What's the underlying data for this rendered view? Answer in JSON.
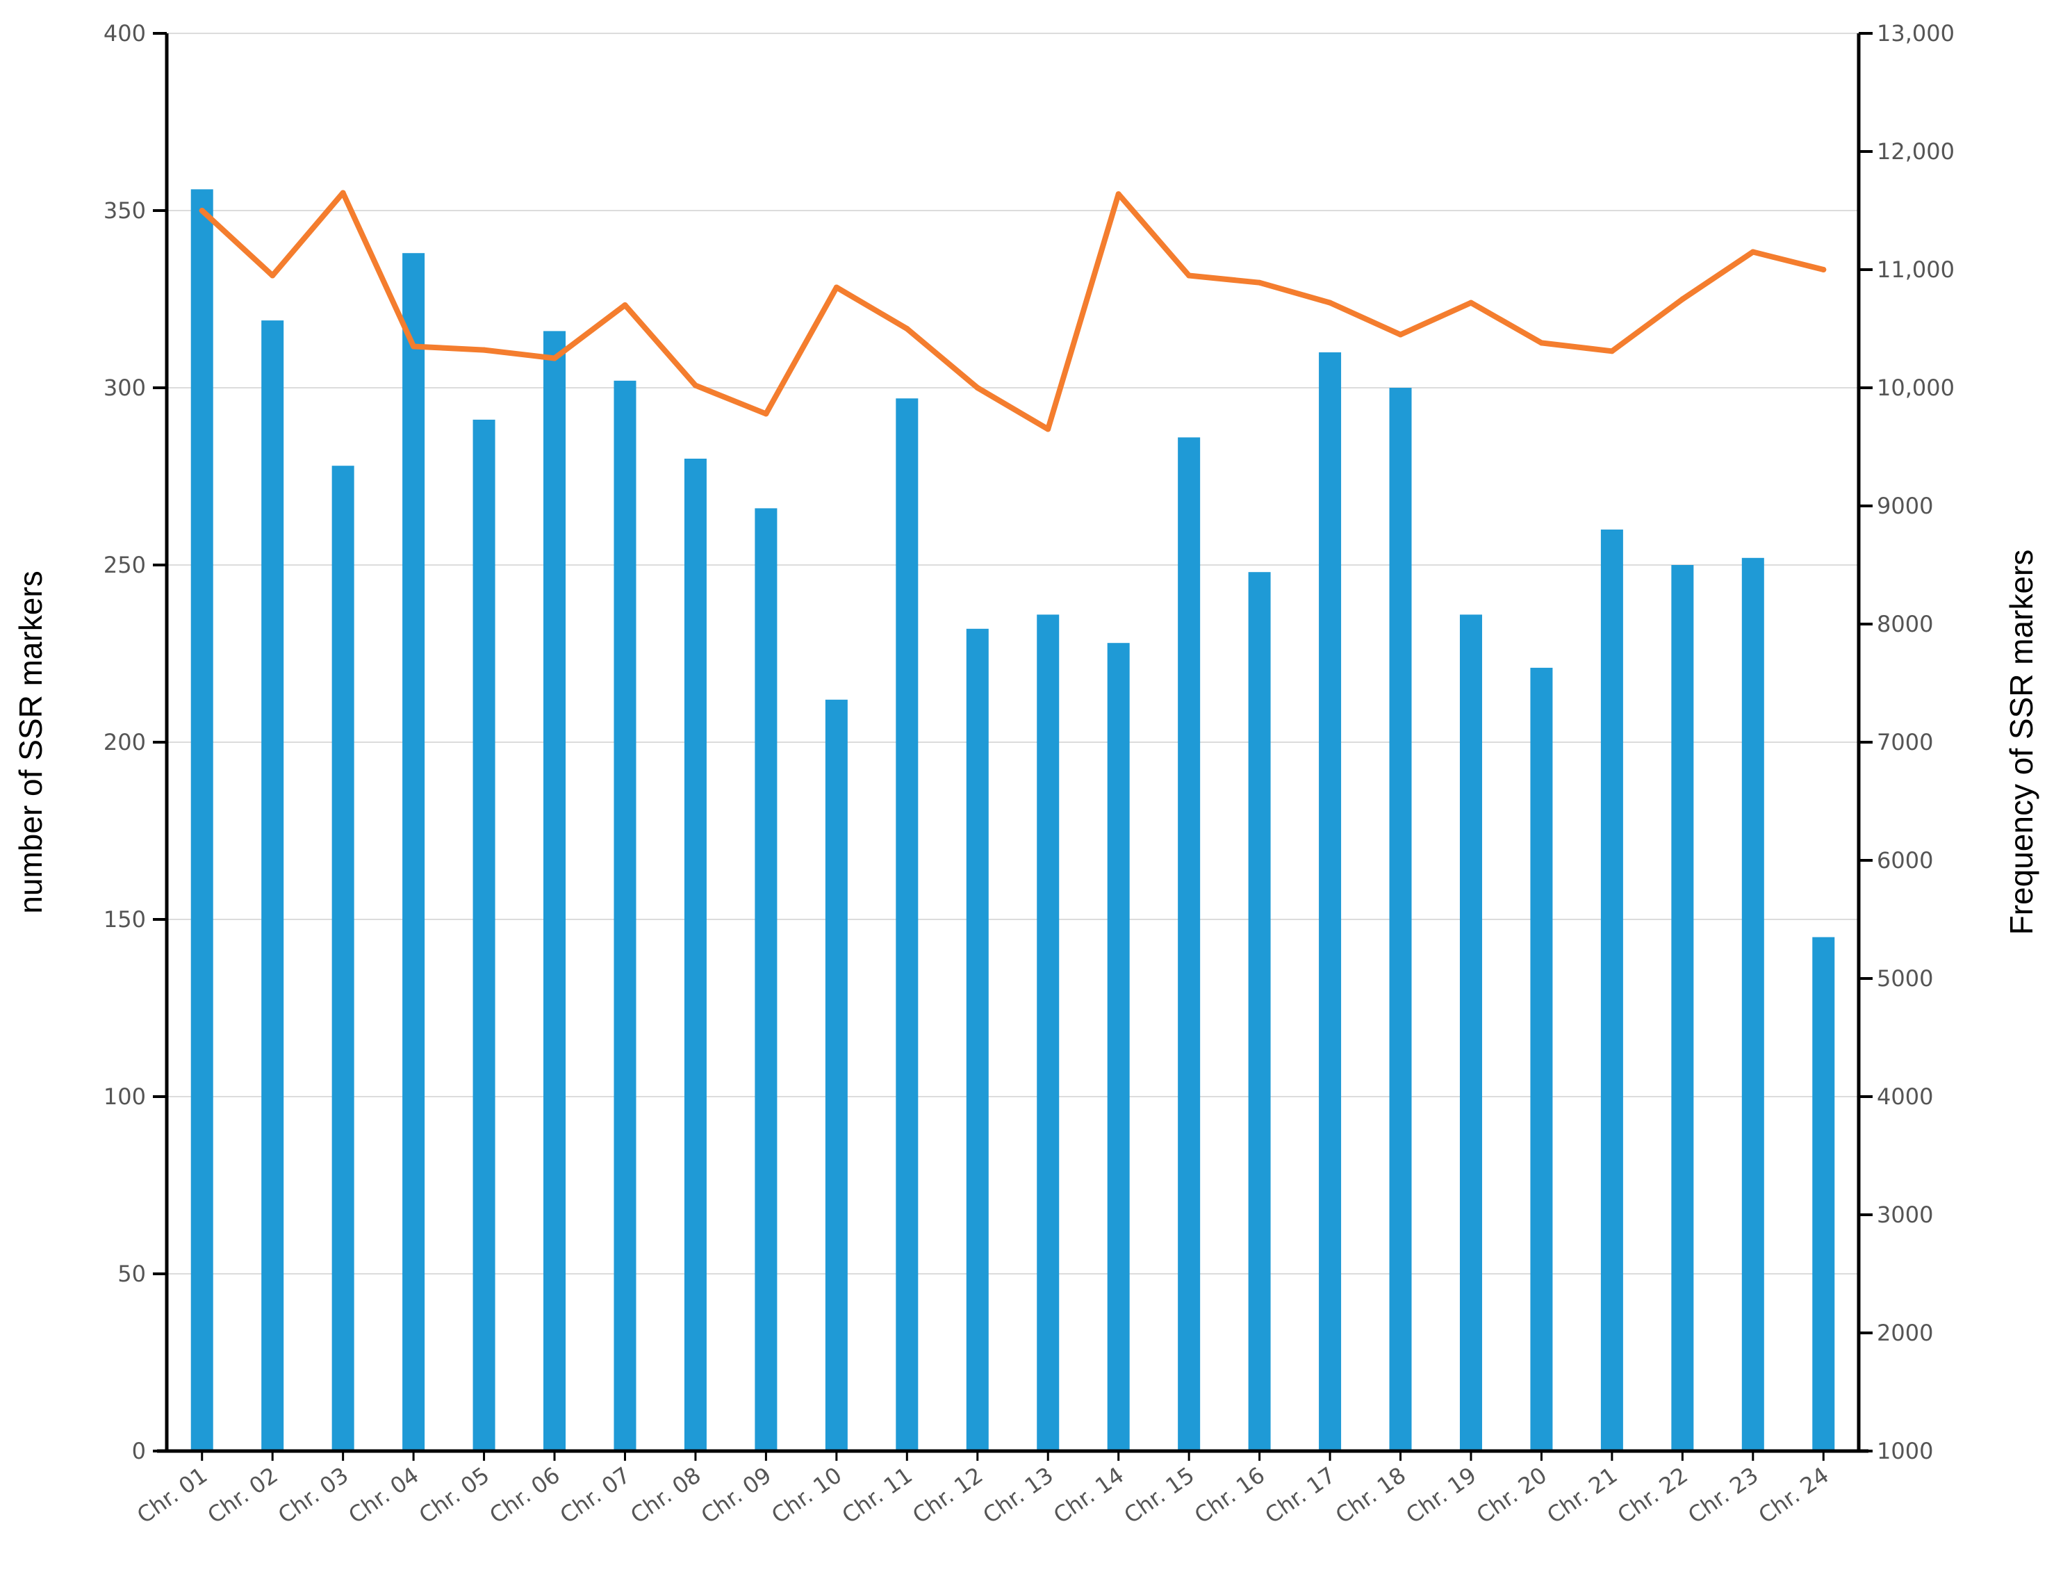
{
  "chart_data": {
    "type": "bar",
    "title": "",
    "xlabel": "",
    "ylabel": "number of SSR markers",
    "y2label": "Frequency of SSR markers",
    "categories": [
      "Chr. 01",
      "Chr. 02",
      "Chr. 03",
      "Chr. 04",
      "Chr. 05",
      "Chr. 06",
      "Chr. 07",
      "Chr. 08",
      "Chr. 09",
      "Chr. 10",
      "Chr. 11",
      "Chr. 12",
      "Chr. 13",
      "Chr. 14",
      "Chr. 15",
      "Chr. 16",
      "Chr. 17",
      "Chr. 18",
      "Chr. 19",
      "Chr. 20",
      "Chr. 21",
      "Chr. 22",
      "Chr. 23",
      "Chr. 24"
    ],
    "ylim": [
      0,
      400
    ],
    "y2lim": [
      1000,
      13000
    ],
    "yticks": [
      "0",
      "50",
      "100",
      "150",
      "200",
      "250",
      "300",
      "350",
      "400"
    ],
    "y2ticks": [
      "1000",
      "2000",
      "3000",
      "4000",
      "5000",
      "6000",
      "7000",
      "8000",
      "9000",
      "10,000",
      "11,000",
      "12,000",
      "13,000"
    ],
    "series": [
      {
        "type": "bar",
        "axis": "left",
        "color": "#1f9ad6",
        "values": [
          356,
          319,
          278,
          338,
          291,
          316,
          302,
          280,
          266,
          212,
          297,
          232,
          236,
          228,
          286,
          248,
          310,
          300,
          236,
          221,
          260,
          250,
          252,
          145
        ]
      },
      {
        "type": "line",
        "axis": "right",
        "color": "#f47d2e",
        "values": [
          11500,
          10950,
          11650,
          10350,
          10320,
          10250,
          10700,
          10020,
          9780,
          10850,
          10500,
          10000,
          9650,
          11640,
          10950,
          10890,
          10720,
          10450,
          10720,
          10380,
          10310,
          10750,
          11150,
          11000
        ]
      }
    ],
    "grid": true,
    "legend": "none"
  }
}
